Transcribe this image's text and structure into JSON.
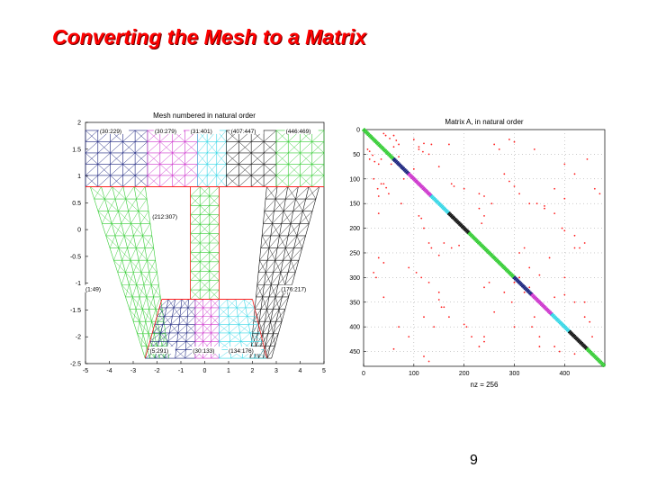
{
  "slide": {
    "title": "Converting the Mesh to a Matrix",
    "page_number": "9"
  },
  "colors": {
    "title": "#ff0000",
    "green": "#33cc33",
    "blue": "#1a237e",
    "magenta": "#cc33cc",
    "cyan": "#33d6e6",
    "black": "#111111",
    "red": "#ff2020"
  },
  "left_figure": {
    "title": "Mesh numbered in natural order",
    "x_ticks": [
      "-5",
      "-4",
      "-3",
      "-2",
      "-1",
      "0",
      "1",
      "2",
      "3",
      "4",
      "5"
    ],
    "y_ticks": [
      "2",
      "1.5",
      "1",
      "0.5",
      "0",
      "-0.5",
      "-1",
      "-1.5",
      "-2",
      "-2.5"
    ],
    "region_labels": {
      "top": [
        "(30:229)",
        "(30:279)",
        "(31:401)",
        "(407:447)",
        "(446:469)"
      ],
      "middle": "(212:307)",
      "left": "(1:49)",
      "right": "(176:217)",
      "bottom": [
        "(5:291)",
        "(30:133)",
        "(134:176)"
      ]
    }
  },
  "chart_data": {
    "type": "scatter",
    "title": "Matrix A, in natural order",
    "xlabel": "nz = 256",
    "xlim": [
      0,
      480
    ],
    "ylim": [
      480,
      0
    ],
    "x_ticks": [
      "0",
      "100",
      "200",
      "300",
      "400"
    ],
    "y_ticks": [
      "0",
      "50",
      "100",
      "150",
      "200",
      "250",
      "300",
      "350",
      "400",
      "450"
    ],
    "series": [
      {
        "color": "green",
        "diagonal_range": [
          0,
          60
        ]
      },
      {
        "color": "blue",
        "diagonal_range": [
          60,
          90
        ]
      },
      {
        "color": "magenta",
        "diagonal_range": [
          90,
          135
        ]
      },
      {
        "color": "cyan",
        "diagonal_range": [
          135,
          170
        ]
      },
      {
        "color": "black",
        "diagonal_range": [
          170,
          210
        ]
      },
      {
        "color": "green",
        "diagonal_range": [
          210,
          300
        ]
      },
      {
        "color": "blue",
        "diagonal_range": [
          300,
          335
        ]
      },
      {
        "color": "magenta",
        "diagonal_range": [
          335,
          375
        ]
      },
      {
        "color": "cyan",
        "diagonal_range": [
          375,
          410
        ]
      },
      {
        "color": "black",
        "diagonal_range": [
          410,
          445
        ]
      },
      {
        "color": "green",
        "diagonal_range": [
          445,
          480
        ]
      }
    ],
    "off_diagonal_points": [
      [
        8,
        40
      ],
      [
        12,
        44
      ],
      [
        18,
        52
      ],
      [
        35,
        60
      ],
      [
        55,
        70
      ],
      [
        60,
        12
      ],
      [
        65,
        22
      ],
      [
        70,
        30
      ],
      [
        75,
        150
      ],
      [
        80,
        100
      ],
      [
        40,
        110
      ],
      [
        45,
        118
      ],
      [
        30,
        135
      ],
      [
        100,
        20
      ],
      [
        110,
        35
      ],
      [
        120,
        28
      ],
      [
        130,
        50
      ],
      [
        170,
        30
      ],
      [
        175,
        110
      ],
      [
        180,
        115
      ],
      [
        200,
        120
      ],
      [
        230,
        160
      ],
      [
        240,
        175
      ],
      [
        260,
        30
      ],
      [
        270,
        40
      ],
      [
        280,
        90
      ],
      [
        290,
        105
      ],
      [
        300,
        115
      ],
      [
        310,
        130
      ],
      [
        330,
        150
      ],
      [
        345,
        150
      ],
      [
        360,
        155
      ],
      [
        380,
        170
      ],
      [
        395,
        200
      ],
      [
        400,
        205
      ],
      [
        420,
        215
      ],
      [
        440,
        230
      ],
      [
        430,
        240
      ],
      [
        445,
        60
      ],
      [
        460,
        120
      ],
      [
        470,
        130
      ],
      [
        20,
        290
      ],
      [
        25,
        300
      ],
      [
        40,
        340
      ],
      [
        70,
        400
      ],
      [
        90,
        420
      ],
      [
        120,
        380
      ],
      [
        140,
        400
      ],
      [
        160,
        360
      ],
      [
        260,
        370
      ],
      [
        280,
        330
      ],
      [
        300,
        310
      ],
      [
        310,
        300
      ],
      [
        330,
        320
      ],
      [
        350,
        295
      ],
      [
        380,
        340
      ],
      [
        400,
        335
      ],
      [
        420,
        350
      ],
      [
        440,
        380
      ],
      [
        455,
        420
      ],
      [
        130,
        230
      ],
      [
        135,
        240
      ],
      [
        150,
        255
      ],
      [
        190,
        235
      ],
      [
        320,
        240
      ],
      [
        250,
        310
      ],
      [
        300,
        400
      ],
      [
        350,
        440
      ],
      [
        390,
        450
      ],
      [
        240,
        420
      ]
    ]
  }
}
